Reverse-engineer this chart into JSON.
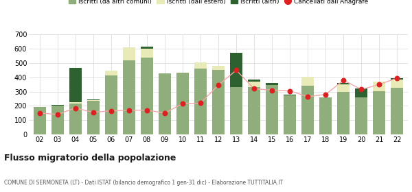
{
  "years": [
    "02",
    "03",
    "04",
    "05",
    "06",
    "07",
    "08",
    "09",
    "10",
    "11",
    "12",
    "13",
    "14",
    "15",
    "16",
    "17",
    "18",
    "19",
    "20",
    "21",
    "22"
  ],
  "iscritti_comuni": [
    190,
    200,
    215,
    235,
    415,
    520,
    540,
    430,
    435,
    460,
    450,
    330,
    330,
    345,
    275,
    340,
    260,
    300,
    260,
    305,
    325
  ],
  "iscritti_estero": [
    0,
    0,
    10,
    5,
    30,
    90,
    60,
    0,
    0,
    45,
    30,
    0,
    40,
    0,
    0,
    65,
    0,
    50,
    0,
    65,
    60
  ],
  "iscritti_altri": [
    0,
    5,
    240,
    5,
    0,
    0,
    15,
    0,
    0,
    0,
    0,
    240,
    15,
    15,
    5,
    0,
    0,
    10,
    60,
    0,
    10
  ],
  "cancellati": [
    150,
    140,
    185,
    155,
    165,
    170,
    170,
    150,
    215,
    220,
    345,
    450,
    320,
    310,
    305,
    265,
    280,
    380,
    315,
    350,
    395
  ],
  "color_comuni": "#8fae7b",
  "color_estero": "#e8ebb8",
  "color_altri": "#2d6130",
  "color_cancellati": "#e02020",
  "color_line": "#f0a8a8",
  "ylim": [
    0,
    700
  ],
  "yticks": [
    0,
    100,
    200,
    300,
    400,
    500,
    600,
    700
  ],
  "title": "Flusso migratorio della popolazione",
  "subtitle": "COMUNE DI SERMONETA (LT) - Dati ISTAT (bilancio demografico 1 gen-31 dic) - Elaborazione TUTTITALIA.IT",
  "legend_labels": [
    "Iscritti (da altri comuni)",
    "Iscritti (dall'estero)",
    "Iscritti (altri)",
    "Cancellati dall'Anagrafe"
  ],
  "bg_color": "#ffffff",
  "grid_color": "#dddddd"
}
